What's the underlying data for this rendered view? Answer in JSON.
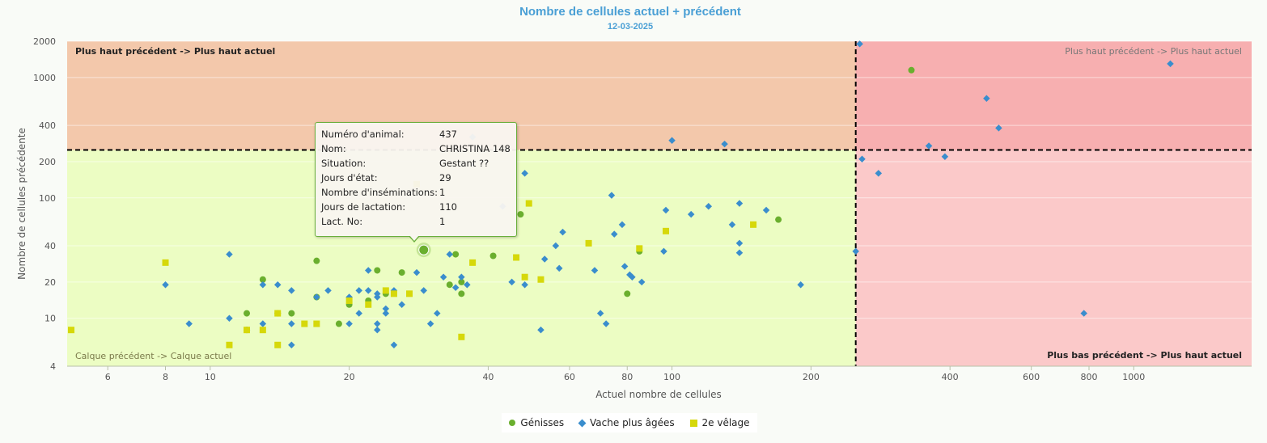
{
  "chart_data": {
    "type": "scatter",
    "title": "Nombre de cellules actuel + précédent",
    "subtitle": "12-03-2025",
    "xlabel": "Actuel nombre de cellules",
    "ylabel": "Nombre de cellules précédente",
    "x_scale": "log",
    "y_scale": "log",
    "xlim": [
      4.9,
      1800
    ],
    "ylim": [
      4,
      2000
    ],
    "x_ticks": [
      6,
      8,
      10,
      20,
      40,
      60,
      80,
      100,
      200,
      400,
      600,
      800,
      1000
    ],
    "y_ticks": [
      4,
      10,
      20,
      40,
      100,
      200,
      400,
      1000,
      2000
    ],
    "x_threshold": 250,
    "y_threshold": 250,
    "grid": "horizontal",
    "quadrants": [
      {
        "id": "top-left",
        "label": "Plus haut précédent -> Plus haut actuel",
        "color": "#f3c8ab",
        "label_color": "#222222",
        "bold": true
      },
      {
        "id": "top-right",
        "label": "Plus haut précédent -> Plus haut actuel",
        "color": "#f7afb0",
        "label_color": "#777777",
        "bold": false
      },
      {
        "id": "bottom-left",
        "label": "Calque précédent -> Calque actuel",
        "color": "#ecfdc3",
        "label_color": "#7a7a4a",
        "bold": false
      },
      {
        "id": "bottom-right",
        "label": "Plus bas précédent -> Plus haut actuel",
        "color": "#fbc9c9",
        "label_color": "#222222",
        "bold": true
      }
    ],
    "series": [
      {
        "name": "Génisses",
        "symbol": "circle",
        "color": "#6aaf2e",
        "points": [
          [
            12,
            11
          ],
          [
            12,
            8
          ],
          [
            13,
            21
          ],
          [
            14,
            11
          ],
          [
            15,
            11
          ],
          [
            17,
            30
          ],
          [
            17,
            15
          ],
          [
            19,
            9
          ],
          [
            20,
            13
          ],
          [
            22,
            14
          ],
          [
            23,
            25
          ],
          [
            24,
            16
          ],
          [
            26,
            24
          ],
          [
            29,
            37
          ],
          [
            33,
            19
          ],
          [
            34,
            34
          ],
          [
            35,
            20
          ],
          [
            35,
            16
          ],
          [
            41,
            33
          ],
          [
            47,
            73
          ],
          [
            80,
            16
          ],
          [
            85,
            36
          ],
          [
            170,
            66
          ],
          [
            330,
            1150
          ]
        ]
      },
      {
        "name": "Vache plus âgées",
        "symbol": "diamond",
        "color": "#3a8dcd",
        "points": [
          [
            8,
            19
          ],
          [
            9,
            9
          ],
          [
            11,
            34
          ],
          [
            11,
            10
          ],
          [
            12,
            8
          ],
          [
            13,
            19
          ],
          [
            13,
            9
          ],
          [
            14,
            19
          ],
          [
            15,
            17
          ],
          [
            15,
            9
          ],
          [
            15,
            6
          ],
          [
            17,
            15
          ],
          [
            18,
            17
          ],
          [
            20,
            9
          ],
          [
            20,
            15
          ],
          [
            21,
            11
          ],
          [
            21,
            17
          ],
          [
            22,
            25
          ],
          [
            22,
            17
          ],
          [
            23,
            16
          ],
          [
            23,
            15
          ],
          [
            23,
            8
          ],
          [
            23,
            9
          ],
          [
            24,
            12
          ],
          [
            24,
            11
          ],
          [
            25,
            6
          ],
          [
            25,
            17
          ],
          [
            26,
            13
          ],
          [
            28,
            24
          ],
          [
            29,
            17
          ],
          [
            30,
            9
          ],
          [
            31,
            11
          ],
          [
            32,
            22
          ],
          [
            33,
            34
          ],
          [
            34,
            18
          ],
          [
            35,
            22
          ],
          [
            36,
            19
          ],
          [
            37,
            320
          ],
          [
            43,
            85
          ],
          [
            45,
            20
          ],
          [
            48,
            19
          ],
          [
            48,
            160
          ],
          [
            52,
            8
          ],
          [
            53,
            31
          ],
          [
            56,
            40
          ],
          [
            57,
            26
          ],
          [
            58,
            52
          ],
          [
            68,
            25
          ],
          [
            70,
            11
          ],
          [
            72,
            9
          ],
          [
            74,
            105
          ],
          [
            75,
            50
          ],
          [
            78,
            60
          ],
          [
            79,
            27
          ],
          [
            81,
            23
          ],
          [
            82,
            22
          ],
          [
            86,
            20
          ],
          [
            96,
            36
          ],
          [
            97,
            79
          ],
          [
            100,
            300
          ],
          [
            110,
            73
          ],
          [
            120,
            85
          ],
          [
            130,
            280
          ],
          [
            135,
            60
          ],
          [
            140,
            90
          ],
          [
            140,
            35
          ],
          [
            140,
            42
          ],
          [
            160,
            79
          ],
          [
            190,
            19
          ],
          [
            250,
            36
          ],
          [
            255,
            1900
          ],
          [
            258,
            210
          ],
          [
            280,
            160
          ],
          [
            360,
            270
          ],
          [
            390,
            220
          ],
          [
            480,
            670
          ],
          [
            510,
            380
          ],
          [
            780,
            11
          ],
          [
            1200,
            1300
          ]
        ]
      },
      {
        "name": "2e vêlage",
        "symbol": "square",
        "color": "#d6d80a",
        "points": [
          [
            5,
            8
          ],
          [
            8,
            29
          ],
          [
            11,
            6
          ],
          [
            12,
            8
          ],
          [
            13,
            8
          ],
          [
            14,
            11
          ],
          [
            14,
            6
          ],
          [
            16,
            9
          ],
          [
            17,
            9
          ],
          [
            20,
            14
          ],
          [
            22,
            13
          ],
          [
            24,
            17
          ],
          [
            25,
            16
          ],
          [
            27,
            16
          ],
          [
            28,
            130
          ],
          [
            35,
            7
          ],
          [
            37,
            29
          ],
          [
            46,
            32
          ],
          [
            48,
            22
          ],
          [
            49,
            90
          ],
          [
            52,
            21
          ],
          [
            66,
            42
          ],
          [
            85,
            38
          ],
          [
            97,
            53
          ],
          [
            150,
            60
          ]
        ]
      }
    ],
    "tooltip": {
      "rows": [
        {
          "label": "Numéro d'animal:",
          "value": "437"
        },
        {
          "label": "Nom:",
          "value": "CHRISTINA 148"
        },
        {
          "label": "Situation:",
          "value": "Gestant ??"
        },
        {
          "label": "Jours d'état:",
          "value": "29"
        },
        {
          "label": "Nombre d'inséminations:",
          "value": "1"
        },
        {
          "label": "Jours de lactation:",
          "value": "110"
        },
        {
          "label": "Lact. No:",
          "value": "1"
        }
      ],
      "highlighted_point": {
        "series": "Génisses",
        "x": 29,
        "y": 37
      }
    },
    "legend_position": "bottom-center"
  }
}
